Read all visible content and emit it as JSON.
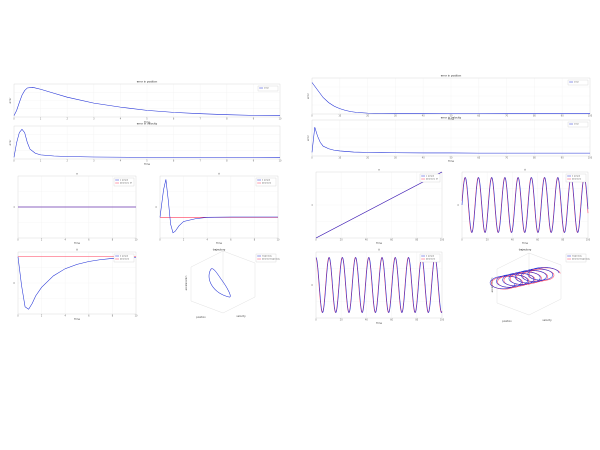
{
  "colors": {
    "desired": "#ff3b5a",
    "actual": "#1f2fd6",
    "box": "#c8c8c8"
  },
  "chart_data": [
    {
      "id": "L1",
      "type": "line",
      "title": "error in position",
      "xlabel": "Time",
      "ylabel": "error",
      "xlim": [
        0,
        10
      ],
      "ylim": [
        0,
        0.5
      ],
      "xticks": [
        "0",
        "1",
        "2",
        "3",
        "4",
        "5",
        "6",
        "7",
        "8",
        "9",
        "10"
      ],
      "series": [
        {
          "name": "error",
          "color": "actual",
          "x": [
            0,
            0.1,
            0.2,
            0.3,
            0.4,
            0.5,
            0.7,
            1,
            1.5,
            2,
            3,
            4,
            5,
            6,
            7,
            8,
            9,
            10
          ],
          "y": [
            0.02,
            0.1,
            0.22,
            0.33,
            0.4,
            0.44,
            0.45,
            0.42,
            0.36,
            0.3,
            0.21,
            0.15,
            0.1,
            0.07,
            0.05,
            0.035,
            0.025,
            0.02
          ]
        }
      ],
      "legend": [
        "error"
      ]
    },
    {
      "id": "L2",
      "type": "line",
      "title": "error in velocity",
      "xlabel": "Time",
      "ylabel": "error",
      "xlim": [
        0,
        10
      ],
      "ylim": [
        0,
        2
      ],
      "xticks": [
        "0",
        "1",
        "2",
        "3",
        "4",
        "5",
        "6",
        "7",
        "8",
        "9",
        "10"
      ],
      "series": [
        {
          "name": "error",
          "color": "actual",
          "x": [
            0,
            0.1,
            0.2,
            0.3,
            0.4,
            0.5,
            0.6,
            0.8,
            1,
            1.5,
            2,
            3,
            5,
            10
          ],
          "y": [
            0.1,
            1,
            1.6,
            1.8,
            1.6,
            1.0,
            0.6,
            0.35,
            0.25,
            0.18,
            0.15,
            0.12,
            0.1,
            0.08
          ]
        }
      ],
      "legend": []
    },
    {
      "id": "L3",
      "type": "line",
      "title": "x",
      "xlabel": "Time",
      "ylabel": "x",
      "xlim": [
        0,
        10
      ],
      "ylim": [
        0,
        2
      ],
      "xticks": [
        "0",
        "2",
        "4",
        "6",
        "8",
        "10"
      ],
      "series": [
        {
          "name": "x actual",
          "color": "actual",
          "x": [
            0,
            10
          ],
          "y": [
            1,
            1
          ]
        },
        {
          "name": "desired x",
          "color": "desired",
          "x": [
            0,
            10
          ],
          "y": [
            1,
            1
          ]
        }
      ],
      "legend": [
        "x actual",
        "desired x (r)"
      ]
    },
    {
      "id": "L4",
      "type": "line",
      "title": "ẋ",
      "xlabel": "Time",
      "ylabel": "ẋ",
      "xlim": [
        0,
        10
      ],
      "ylim": [
        -0.6,
        1.2
      ],
      "xticks": [
        "0",
        "2",
        "4",
        "6",
        "8",
        "10"
      ],
      "series": [
        {
          "name": "actual",
          "color": "actual",
          "x": [
            0,
            0.3,
            0.5,
            0.7,
            0.9,
            1.1,
            1.3,
            1.6,
            2,
            3,
            4,
            6,
            10
          ],
          "y": [
            0,
            0.8,
            1.1,
            0.5,
            -0.2,
            -0.45,
            -0.4,
            -0.25,
            -0.12,
            -0.04,
            0,
            0.01,
            0.01
          ]
        },
        {
          "name": "desired",
          "color": "desired",
          "x": [
            0,
            10
          ],
          "y": [
            0,
            0
          ]
        }
      ],
      "legend": [
        "ẋ actual",
        "desired ẋ"
      ]
    },
    {
      "id": "L5",
      "type": "line",
      "title": "ẍ",
      "xlabel": "Time",
      "ylabel": "ẍ",
      "xlim": [
        0,
        10
      ],
      "ylim": [
        -12,
        1
      ],
      "xticks": [
        "0",
        "2",
        "4",
        "6",
        "8",
        "10"
      ],
      "series": [
        {
          "name": "actual",
          "color": "actual",
          "x": [
            0,
            0.3,
            0.6,
            0.9,
            1.2,
            1.5,
            2,
            3,
            4,
            5,
            6,
            7,
            8,
            9,
            10
          ],
          "y": [
            0,
            -6,
            -10.5,
            -11,
            -9.8,
            -8.2,
            -6.4,
            -4,
            -2.5,
            -1.6,
            -1,
            -0.6,
            -0.35,
            -0.2,
            -0.1
          ]
        },
        {
          "name": "desired",
          "color": "desired",
          "x": [
            0,
            10
          ],
          "y": [
            0,
            0
          ]
        }
      ],
      "legend": [
        "ẍ actual",
        "desired ẍ"
      ]
    },
    {
      "id": "L6",
      "type": "line3d",
      "title": "trajectory",
      "xlabel": "position",
      "ylabel": "velocity",
      "zlabel": "acceleration",
      "series": [
        {
          "name": "trajectory",
          "color": "actual",
          "shape": "loop"
        },
        {
          "name": "desired trajectory",
          "color": "desired",
          "shape": "point"
        }
      ],
      "legend": [
        "trajectory",
        "desired trajectory"
      ]
    },
    {
      "id": "R1",
      "type": "line",
      "title": "error in position",
      "xlabel": "Time",
      "ylabel": "error",
      "xlim": [
        0,
        100
      ],
      "ylim": [
        0,
        1.2
      ],
      "xticks": [
        "0",
        "10",
        "20",
        "30",
        "40",
        "50",
        "60",
        "70",
        "80",
        "90",
        "100"
      ],
      "series": [
        {
          "name": "error",
          "color": "actual",
          "x": [
            0,
            2,
            4,
            6,
            8,
            10,
            12,
            14,
            16,
            20,
            25,
            30,
            40,
            50,
            60,
            70,
            80,
            90,
            100
          ],
          "y": [
            1.05,
            0.8,
            0.55,
            0.38,
            0.26,
            0.18,
            0.12,
            0.08,
            0.055,
            0.03,
            0.02,
            0.015,
            0.015,
            0.012,
            0.012,
            0.01,
            0.01,
            0.01,
            0.01
          ]
        }
      ],
      "legend": [
        "error"
      ]
    },
    {
      "id": "R2",
      "type": "line",
      "title": "error in velocity",
      "xlabel": "Time",
      "ylabel": "error",
      "xlim": [
        0,
        100
      ],
      "ylim": [
        0,
        2
      ],
      "xticks": [
        "0",
        "10",
        "20",
        "30",
        "40",
        "50",
        "60",
        "70",
        "80",
        "90",
        "100"
      ],
      "series": [
        {
          "name": "error",
          "color": "actual",
          "x": [
            0,
            1,
            2,
            3,
            4,
            6,
            8,
            10,
            15,
            20,
            30,
            40,
            50,
            60,
            80,
            100
          ],
          "y": [
            0.2,
            1.6,
            1.1,
            0.75,
            0.55,
            0.4,
            0.32,
            0.28,
            0.22,
            0.2,
            0.18,
            0.17,
            0.17,
            0.16,
            0.16,
            0.16
          ]
        }
      ],
      "legend": [
        "error"
      ]
    },
    {
      "id": "R3",
      "type": "line",
      "title": "x",
      "xlabel": "Time",
      "ylabel": "x",
      "xlim": [
        0,
        100
      ],
      "ylim": [
        0,
        100
      ],
      "xticks": [
        "0",
        "20",
        "40",
        "60",
        "80",
        "100"
      ],
      "series": [
        {
          "name": "actual",
          "color": "actual",
          "x": [
            0,
            100
          ],
          "y": [
            0,
            100
          ]
        },
        {
          "name": "desired",
          "color": "desired",
          "x": [
            0,
            100
          ],
          "y": [
            0,
            100
          ]
        }
      ],
      "legend": [
        "x actual",
        "desired x (r)"
      ]
    },
    {
      "id": "R4",
      "type": "line",
      "title": "ẋ",
      "xlabel": "Time",
      "ylabel": "ẋ",
      "xlim": [
        0,
        100
      ],
      "ylim": [
        -1.2,
        1.2
      ],
      "xticks": [
        "0",
        "20",
        "40",
        "60",
        "80",
        "100"
      ],
      "series": [
        {
          "name": "actual",
          "color": "actual",
          "func": "sin",
          "amp": 1,
          "period": 10.5,
          "phase": 0
        },
        {
          "name": "desired",
          "color": "desired",
          "func": "sin",
          "amp": 1,
          "period": 10.5,
          "phase": 0.15
        }
      ],
      "legend": [
        "ẋ actual",
        "desired ẋ"
      ]
    },
    {
      "id": "R5",
      "type": "line",
      "title": "ẍ",
      "xlabel": "Time",
      "ylabel": "ẍ",
      "xlim": [
        0,
        100
      ],
      "ylim": [
        -1.2,
        1.2
      ],
      "xticks": [
        "0",
        "20",
        "40",
        "60",
        "80",
        "100"
      ],
      "series": [
        {
          "name": "actual",
          "color": "actual",
          "func": "cos",
          "amp": 1,
          "period": 10.5,
          "phase": 0
        },
        {
          "name": "desired",
          "color": "desired",
          "func": "cos",
          "amp": 1,
          "period": 10.5,
          "phase": 0.15
        }
      ],
      "legend": [
        "ẍ actual",
        "desired ẍ"
      ]
    },
    {
      "id": "R6",
      "type": "line3d",
      "title": "trajectory",
      "xlabel": "position",
      "ylabel": "velocity",
      "zlabel": "acceleration",
      "series": [
        {
          "name": "trajectory",
          "color": "actual",
          "shape": "coil"
        },
        {
          "name": "desired trajectory",
          "color": "desired",
          "shape": "coil-offset"
        }
      ],
      "legend": [
        "trajectory",
        "desired trajectory"
      ]
    }
  ]
}
